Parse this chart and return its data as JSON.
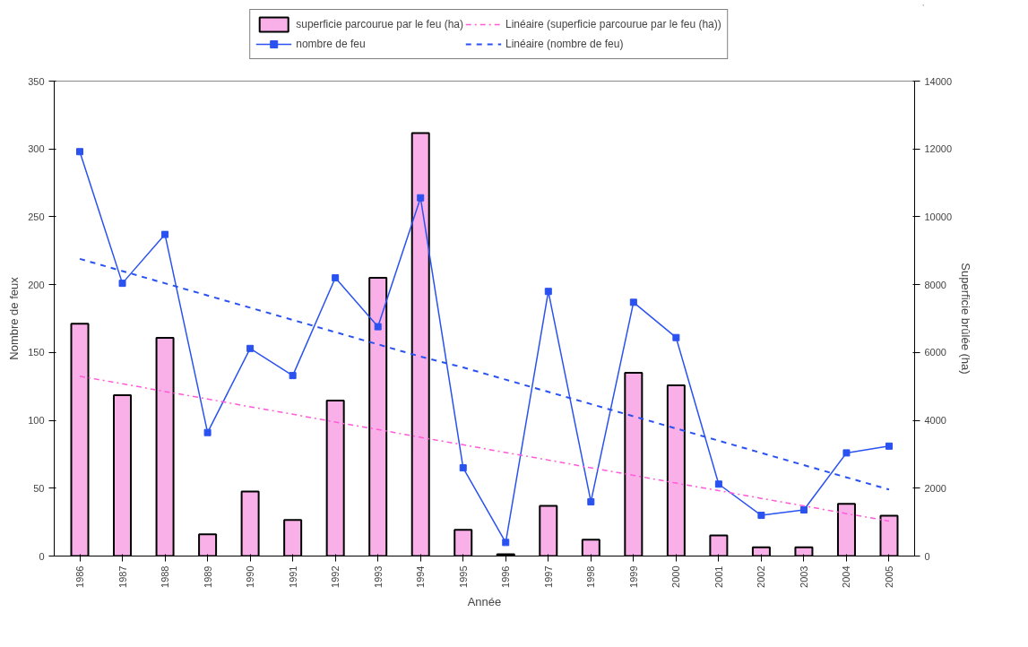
{
  "chart_data": {
    "type": "bar",
    "xlabel": "Année",
    "ylabel": "Nombre de feux",
    "y2label": "Superficie brûlée (ha)",
    "categories": [
      "1986",
      "1987",
      "1988",
      "1989",
      "1990",
      "1991",
      "1992",
      "1993",
      "1994",
      "1995",
      "1996",
      "1997",
      "1998",
      "1999",
      "2000",
      "2001",
      "2002",
      "2003",
      "2004",
      "2005"
    ],
    "series": [
      {
        "name": "superficie parcourue par le feu (ha)",
        "axis": "y2",
        "color": "#f9b0e8",
        "values": [
          6850,
          4740,
          6430,
          640,
          1900,
          1060,
          4580,
          8200,
          12470,
          770,
          50,
          1480,
          480,
          5400,
          5030,
          610,
          260,
          260,
          1540,
          1190
        ]
      },
      {
        "name": "nombre de feu",
        "type": "line",
        "color": "#2a52f0",
        "marker": "square",
        "line_style": "solid",
        "values": [
          298,
          201,
          237,
          91,
          153,
          133,
          205,
          169,
          264,
          65,
          10,
          195,
          40,
          187,
          161,
          53,
          30,
          34,
          76,
          81
        ]
      },
      {
        "name": "Linéaire (superficie parcourue par le feu (ha))",
        "type": "line",
        "axis": "y2",
        "color": "#ff5ad8",
        "marker": "none",
        "line_style": "dashdot",
        "values": [
          5300,
          5080,
          4850,
          4630,
          4400,
          4180,
          3950,
          3730,
          3500,
          3280,
          3050,
          2830,
          2600,
          2380,
          2150,
          1930,
          1700,
          1480,
          1250,
          1030
        ]
      },
      {
        "name": "Linéaire (nombre de feu)",
        "type": "line",
        "color": "#2a52f0",
        "marker": "none",
        "line_style": "dashed",
        "values": [
          219,
          210,
          201,
          192,
          183,
          174,
          165,
          156,
          147,
          139,
          130,
          121,
          112,
          103,
          94,
          85,
          76,
          67,
          58,
          49
        ]
      }
    ],
    "ylim": [
      0,
      350
    ],
    "yticks": [
      0,
      50,
      100,
      150,
      200,
      250,
      300,
      350
    ],
    "y2lim": [
      0,
      14000
    ],
    "y2ticks": [
      0,
      2000,
      4000,
      6000,
      8000,
      10000,
      12000,
      14000
    ],
    "grid": false,
    "legend": "top"
  }
}
